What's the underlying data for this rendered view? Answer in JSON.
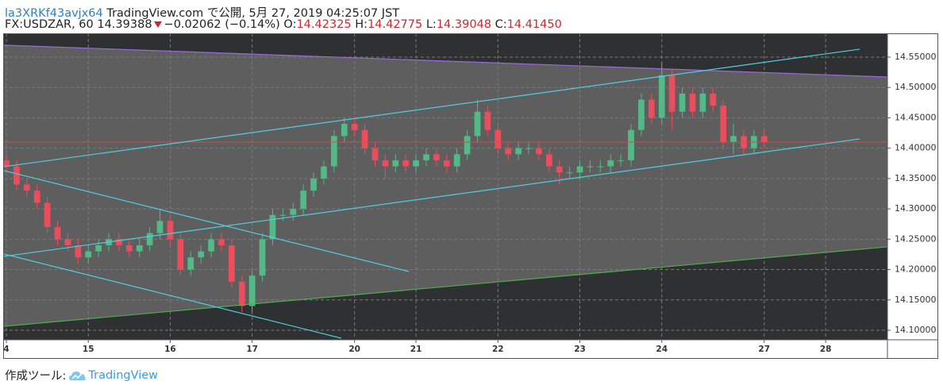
{
  "header": {
    "author": "la3XRKf43avjx64",
    "published": "TradingView.com で公開, 5月 27, 2019 04:25:07 JST"
  },
  "quote": {
    "symbol": "FX:USDZAR, 60",
    "last": "14.39388",
    "change": "−0.02062 (−0.14%)",
    "open_label": "O:",
    "open": "14.42325",
    "high_label": "H:",
    "high": "14.42775",
    "low_label": "L:",
    "low": "14.39048",
    "close_label": "C:",
    "close": "14.41450"
  },
  "chart_data": {
    "type": "candlestick",
    "x": [
      0,
      3,
      6,
      9,
      12,
      15,
      18,
      21,
      24,
      27,
      30,
      33,
      36,
      39,
      42,
      45,
      48,
      51,
      54,
      57,
      60,
      63,
      66,
      69,
      72,
      75,
      78,
      81,
      84,
      87,
      90,
      93,
      96,
      99,
      102,
      105,
      108,
      111,
      114,
      117,
      120,
      123,
      126,
      129,
      132,
      135,
      138,
      141,
      144,
      147,
      150,
      153,
      156,
      159,
      162,
      165,
      168,
      171,
      174,
      177,
      180,
      183,
      186,
      189,
      192,
      195,
      198,
      201,
      204,
      207,
      210,
      213,
      216,
      219,
      222
    ],
    "open": [
      14.38,
      14.37,
      14.34,
      14.33,
      14.31,
      14.27,
      14.25,
      14.24,
      14.22,
      14.23,
      14.24,
      14.25,
      14.24,
      14.23,
      14.24,
      14.26,
      14.28,
      14.25,
      14.2,
      14.22,
      14.23,
      14.25,
      14.24,
      14.18,
      14.14,
      14.19,
      14.25,
      14.29,
      14.29,
      14.3,
      14.33,
      14.35,
      14.37,
      14.42,
      14.44,
      14.43,
      14.4,
      14.38,
      14.37,
      14.38,
      14.37,
      14.38,
      14.39,
      14.38,
      14.37,
      14.39,
      14.42,
      14.46,
      14.43,
      14.4,
      14.39,
      14.4,
      14.4,
      14.39,
      14.37,
      14.36,
      14.36,
      14.37,
      14.37,
      14.37,
      14.38,
      14.38,
      14.43,
      14.48,
      14.45,
      14.52,
      14.46,
      14.49,
      14.46,
      14.49,
      14.47,
      14.41,
      14.42,
      14.4,
      14.42
    ],
    "high": [
      14.39,
      14.38,
      14.35,
      14.34,
      14.32,
      14.28,
      14.26,
      14.25,
      14.24,
      14.25,
      14.26,
      14.26,
      14.25,
      14.25,
      14.27,
      14.3,
      14.29,
      14.26,
      14.23,
      14.24,
      14.26,
      14.26,
      14.25,
      14.19,
      14.2,
      14.26,
      14.3,
      14.3,
      14.31,
      14.34,
      14.36,
      14.38,
      14.43,
      14.45,
      14.45,
      14.44,
      14.41,
      14.39,
      14.39,
      14.39,
      14.39,
      14.4,
      14.4,
      14.39,
      14.4,
      14.43,
      14.48,
      14.47,
      14.44,
      14.41,
      14.41,
      14.41,
      14.41,
      14.4,
      14.38,
      14.37,
      14.38,
      14.38,
      14.38,
      14.39,
      14.39,
      14.44,
      14.49,
      14.49,
      14.54,
      14.53,
      14.5,
      14.5,
      14.5,
      14.5,
      14.48,
      14.44,
      14.43,
      14.43,
      14.43
    ],
    "low": [
      14.36,
      14.33,
      14.32,
      14.3,
      14.26,
      14.24,
      14.23,
      14.21,
      14.21,
      14.22,
      14.23,
      14.23,
      14.22,
      14.22,
      14.23,
      14.25,
      14.24,
      14.19,
      14.19,
      14.21,
      14.22,
      14.23,
      14.17,
      14.13,
      14.13,
      14.18,
      14.24,
      14.28,
      14.28,
      14.29,
      14.32,
      14.34,
      14.36,
      14.41,
      14.42,
      14.39,
      14.37,
      14.35,
      14.36,
      14.36,
      14.36,
      14.37,
      14.37,
      14.36,
      14.36,
      14.38,
      14.41,
      14.42,
      14.39,
      14.38,
      14.38,
      14.39,
      14.38,
      14.36,
      14.34,
      14.35,
      14.35,
      14.36,
      14.36,
      14.36,
      14.37,
      14.37,
      14.42,
      14.44,
      14.44,
      14.43,
      14.45,
      14.45,
      14.45,
      14.46,
      14.4,
      14.39,
      14.39,
      14.39,
      14.4
    ],
    "close": [
      14.37,
      14.34,
      14.33,
      14.31,
      14.27,
      14.25,
      14.24,
      14.22,
      14.23,
      14.24,
      14.25,
      14.24,
      14.23,
      14.24,
      14.26,
      14.28,
      14.25,
      14.2,
      14.22,
      14.23,
      14.25,
      14.24,
      14.18,
      14.14,
      14.19,
      14.25,
      14.29,
      14.29,
      14.3,
      14.33,
      14.35,
      14.37,
      14.42,
      14.44,
      14.43,
      14.4,
      14.38,
      14.37,
      14.38,
      14.37,
      14.38,
      14.39,
      14.38,
      14.37,
      14.39,
      14.42,
      14.46,
      14.43,
      14.4,
      14.39,
      14.4,
      14.4,
      14.39,
      14.37,
      14.36,
      14.36,
      14.37,
      14.37,
      14.37,
      14.38,
      14.38,
      14.43,
      14.48,
      14.45,
      14.52,
      14.46,
      14.49,
      14.46,
      14.49,
      14.47,
      14.41,
      14.42,
      14.4,
      14.42,
      14.41
    ],
    "up_color": "#53b987",
    "down_color": "#eb4d5c",
    "price_line_color": "#c8504f",
    "background_color": "#2f3032",
    "channel_color": "#5e5e5e",
    "xlim": [
      -0.7,
      258.1
    ],
    "ylim": [
      14.0843,
      14.5892
    ],
    "xticks": [
      {
        "value": 0,
        "label": "4"
      },
      {
        "value": 24,
        "label": "15"
      },
      {
        "value": 48,
        "label": "16"
      },
      {
        "value": 72,
        "label": "17"
      },
      {
        "value": 102,
        "label": "20"
      },
      {
        "value": 120,
        "label": "21"
      },
      {
        "value": 144,
        "label": "22"
      },
      {
        "value": 168,
        "label": "23"
      },
      {
        "value": 192,
        "label": "24"
      },
      {
        "value": 222,
        "label": "27"
      },
      {
        "value": 240,
        "label": "28"
      }
    ],
    "yticks": [
      {
        "value": 14.1,
        "label": "14.10000"
      },
      {
        "value": 14.15,
        "label": "14.15000"
      },
      {
        "value": 14.2,
        "label": "14.20000"
      },
      {
        "value": 14.25,
        "label": "14.25000"
      },
      {
        "value": 14.3,
        "label": "14.30000"
      },
      {
        "value": 14.35,
        "label": "14.35000"
      },
      {
        "value": 14.4,
        "label": "14.40000"
      },
      {
        "value": 14.45,
        "label": "14.45000"
      },
      {
        "value": 14.5,
        "label": "14.50000"
      },
      {
        "value": 14.55,
        "label": "14.55000"
      }
    ],
    "grid": true,
    "lines": [
      {
        "color": "#9c6ade",
        "points": [
          [
            -0.7,
            14.5697
          ],
          [
            258.1,
            14.5173
          ]
        ]
      },
      {
        "color": "#4caf50",
        "points": [
          [
            -0.7,
            14.1065
          ],
          [
            258.1,
            14.2374
          ]
        ]
      },
      {
        "color": "#4dd0e1",
        "points": [
          [
            -0.7,
            14.3695
          ],
          [
            250,
            14.5631
          ]
        ]
      },
      {
        "color": "#4dd0e1",
        "points": [
          [
            -0.7,
            14.2217
          ],
          [
            250,
            14.4153
          ]
        ]
      },
      {
        "color": "#4dd0e1",
        "points": [
          [
            -0.7,
            14.363
          ],
          [
            117.9,
            14.1968
          ]
        ]
      },
      {
        "color": "#4dd0e1",
        "points": [
          [
            -0.7,
            14.2256
          ],
          [
            98.1,
            14.0869
          ]
        ]
      }
    ]
  },
  "footer": {
    "label": "作成ツール:",
    "brand": "TradingView"
  }
}
